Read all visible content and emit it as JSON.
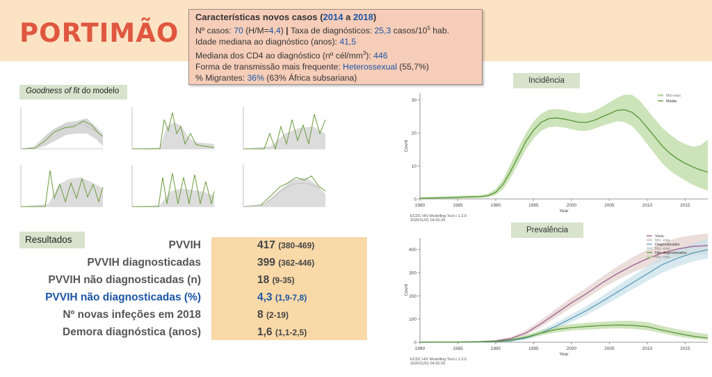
{
  "page": {
    "title": "PORTIMÃO"
  },
  "info": {
    "heading_prefix": "Características novos casos (",
    "year_start": "2014",
    "heading_mid": " a ",
    "year_end": "2018",
    "heading_suffix": ")",
    "cases_label": "Nº casos: ",
    "cases_value": "70",
    "cases_ratio_open": " (H/M=",
    "cases_ratio": "4,4",
    "cases_ratio_close": ")",
    "rate_sep": " | ",
    "rate_label": "Taxa de diagnósticos: ",
    "rate_value": "25,3",
    "rate_unit": " casos/10",
    "rate_exp": "5",
    "rate_unit_end": " hab.",
    "age_label": "Idade mediana ao diagnóstico (anos): ",
    "age_value": "41,5",
    "cd4_label": "Mediana dos CD4 ao diagnóstico (nº cél/mm",
    "cd4_exp": "3",
    "cd4_close": "): ",
    "cd4_value": "446",
    "trans_label": "Forma de transmissão mais frequente: ",
    "trans_value": "Heterossexual",
    "trans_pct": " (55,7%)",
    "migr_label": "% Migrantes: ",
    "migr_value": "36%",
    "migr_note": " (63% África subsariana)"
  },
  "gof": {
    "label_italic": "Goodness of fit",
    "label_rest": " do modelo"
  },
  "results": {
    "label": "Resultados",
    "rows": [
      {
        "label": "PVVIH",
        "value": "417",
        "ci": "(380-469)"
      },
      {
        "label": "PVVIH diagnosticadas",
        "value": "399",
        "ci": "(362-446)"
      },
      {
        "label": "PVVIH não diagnosticadas (n)",
        "value": "18",
        "ci": "(9-35)"
      },
      {
        "label": "PVVIH não diagnosticadas (%)",
        "value": "4,3",
        "ci": "(1,9-7,8)"
      },
      {
        "label": "Nº novas infeções em 2018",
        "value": "8",
        "ci": "(2-19)"
      },
      {
        "label": "Demora diagnóstica (anos)",
        "value": "1,6",
        "ci": "(1,1-2,5)"
      }
    ]
  },
  "colors": {
    "green_line": "#5a9a3a",
    "green_band": "#bcd9a3",
    "purple_line": "#9b5f8f",
    "purple_band": "#e2cfca",
    "blue_line": "#5a9ab4",
    "blue_band": "#c8e0e8",
    "highlight_blue": "#1d55a5"
  },
  "chart_data": [
    {
      "type": "line",
      "title": "Incidência",
      "xlabel": "Year",
      "ylabel": "Count",
      "xlim": [
        1980,
        2018
      ],
      "ylim": [
        0,
        32
      ],
      "yticks": [
        0,
        10,
        20,
        30
      ],
      "xticks": [
        1980,
        1985,
        1990,
        1995,
        2000,
        2005,
        2010,
        2015
      ],
      "footer1": "ECDC HIV Modelling Tool v 1.3.0",
      "footer2": "2020/11/01 04:35:29",
      "legend": [
        "Min-máx",
        "Média"
      ],
      "series": [
        {
          "name": "Média",
          "x": [
            1980,
            1984,
            1986,
            1988,
            1989,
            1990,
            1991,
            1992,
            1993,
            1994,
            1995,
            1996,
            1997,
            1998,
            1999,
            2000,
            2001,
            2002,
            2003,
            2004,
            2005,
            2006,
            2007,
            2008,
            2009,
            2010,
            2011,
            2012,
            2013,
            2014,
            2015,
            2016,
            2017,
            2018
          ],
          "values": [
            0.2,
            0.4,
            0.6,
            0.7,
            1.0,
            2.0,
            4.5,
            8.5,
            13.0,
            17.5,
            20.8,
            23.2,
            24.3,
            24.5,
            24.2,
            23.7,
            23.2,
            23.2,
            23.8,
            24.8,
            25.8,
            26.8,
            27.0,
            26.2,
            24.3,
            21.6,
            18.8,
            16.0,
            13.8,
            12.1,
            10.8,
            9.7,
            8.8,
            8.1
          ]
        },
        {
          "name": "Min-máx",
          "x": [
            1980,
            1984,
            1986,
            1988,
            1989,
            1990,
            1991,
            1992,
            1993,
            1994,
            1995,
            1996,
            1997,
            1998,
            1999,
            2000,
            2001,
            2002,
            2003,
            2004,
            2005,
            2006,
            2007,
            2008,
            2009,
            2010,
            2011,
            2012,
            2013,
            2014,
            2015,
            2016,
            2017,
            2018
          ],
          "lower": [
            0.0,
            0.1,
            0.2,
            0.3,
            0.5,
            1.2,
            3.0,
            6.5,
            10.8,
            15.0,
            18.3,
            20.6,
            21.7,
            21.9,
            21.6,
            21.1,
            20.6,
            20.6,
            21.2,
            22.1,
            22.8,
            23.5,
            23.3,
            22.0,
            19.6,
            16.6,
            13.6,
            10.8,
            8.6,
            7.0,
            5.6,
            4.3,
            3.3,
            2.5
          ],
          "upper": [
            0.5,
            0.8,
            1.0,
            1.2,
            1.6,
            3.0,
            6.0,
            10.8,
            15.5,
            20.0,
            23.5,
            25.8,
            27.0,
            27.2,
            27.0,
            26.4,
            26.0,
            26.0,
            26.6,
            27.8,
            29.2,
            30.6,
            31.6,
            31.5,
            29.8,
            27.0,
            24.2,
            21.5,
            19.5,
            17.8,
            16.6,
            15.8,
            16.2,
            18.0
          ]
        }
      ]
    },
    {
      "type": "line",
      "title": "Prevalência",
      "xlabel": "Year",
      "ylabel": "Count",
      "xlim": [
        1980,
        2018
      ],
      "ylim": [
        0,
        450
      ],
      "yticks": [
        0,
        100,
        200,
        300,
        400
      ],
      "xticks": [
        1980,
        1985,
        1990,
        1995,
        2000,
        2005,
        2010,
        2015
      ],
      "footer1": "ECDC HIV Modelling Tool v 1.3.0",
      "footer2": "2020/11/01 04:35:29",
      "legend": [
        "Vivos",
        "Min.-máx.",
        "Diagnosticados",
        "Min.-máx.",
        "Não diagnosticados",
        "Min.-máx"
      ],
      "series": [
        {
          "name": "Vivos",
          "x": [
            1980,
            1985,
            1988,
            1990,
            1992,
            1994,
            1996,
            1998,
            2000,
            2002,
            2004,
            2006,
            2008,
            2010,
            2012,
            2014,
            2016,
            2018
          ],
          "values": [
            0,
            1,
            3,
            6,
            16,
            40,
            80,
            125,
            170,
            210,
            255,
            295,
            330,
            360,
            385,
            402,
            413,
            417
          ],
          "lower": [
            0,
            0,
            1,
            3,
            10,
            30,
            66,
            108,
            150,
            190,
            232,
            268,
            300,
            327,
            350,
            366,
            376,
            380
          ],
          "upper": [
            1,
            2,
            5,
            10,
            22,
            52,
            96,
            145,
            192,
            235,
            282,
            325,
            365,
            400,
            428,
            450,
            462,
            469
          ]
        },
        {
          "name": "Diagnosticados",
          "x": [
            1980,
            1985,
            1988,
            1990,
            1992,
            1994,
            1996,
            1998,
            2000,
            2002,
            2004,
            2006,
            2008,
            2010,
            2012,
            2014,
            2016,
            2018
          ],
          "values": [
            0,
            0,
            1,
            2,
            6,
            18,
            40,
            70,
            103,
            137,
            175,
            215,
            255,
            295,
            335,
            362,
            385,
            399
          ],
          "lower": [
            0,
            0,
            0,
            1,
            3,
            11,
            30,
            57,
            87,
            118,
            153,
            189,
            227,
            264,
            300,
            326,
            348,
            362
          ],
          "upper": [
            0,
            1,
            2,
            4,
            10,
            26,
            52,
            85,
            120,
            157,
            198,
            242,
            285,
            327,
            370,
            400,
            425,
            446
          ]
        },
        {
          "name": "Não diagnosticados",
          "x": [
            1980,
            1985,
            1988,
            1990,
            1992,
            1994,
            1996,
            1998,
            2000,
            2002,
            2004,
            2006,
            2008,
            2010,
            2012,
            2014,
            2016,
            2018
          ],
          "values": [
            0,
            1,
            2,
            4,
            10,
            22,
            40,
            55,
            63,
            68,
            72,
            74,
            73,
            67,
            52,
            38,
            26,
            18
          ],
          "lower": [
            0,
            0,
            1,
            2,
            6,
            15,
            30,
            42,
            50,
            54,
            58,
            60,
            58,
            52,
            38,
            25,
            15,
            9
          ],
          "upper": [
            1,
            2,
            4,
            7,
            15,
            30,
            52,
            68,
            78,
            84,
            88,
            92,
            92,
            87,
            70,
            56,
            44,
            35
          ]
        }
      ]
    }
  ]
}
